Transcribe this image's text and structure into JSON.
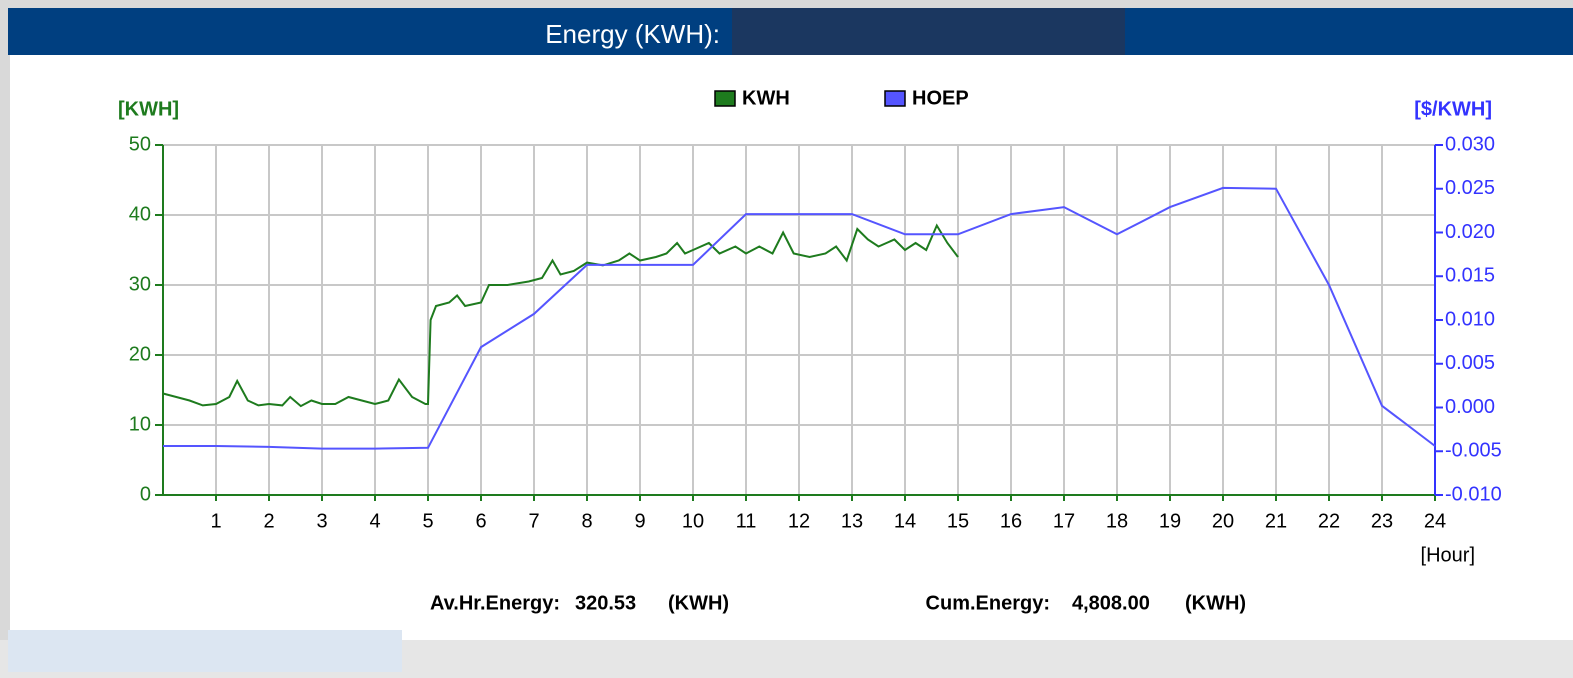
{
  "chart_data": {
    "type": "line",
    "title": "Energy (KWH):",
    "y_label": "[KWH]",
    "y2_label": "[$/KWH]",
    "x_label": "[Hour]",
    "xlim": [
      0,
      24
    ],
    "xticks": [
      1,
      2,
      3,
      4,
      5,
      6,
      7,
      8,
      9,
      10,
      11,
      12,
      13,
      14,
      15,
      16,
      17,
      18,
      19,
      20,
      21,
      22,
      23,
      24
    ],
    "ylim": [
      0,
      50
    ],
    "yticks": [
      0,
      10,
      20,
      30,
      40,
      50
    ],
    "y2lim": [
      -0.01,
      0.03
    ],
    "y2ticks": [
      {
        "value": -0.01,
        "label": "-0.010"
      },
      {
        "value": -0.005,
        "label": "-0.005"
      },
      {
        "value": 0,
        "label": "0.000"
      },
      {
        "value": 0.005,
        "label": "0.005"
      },
      {
        "value": 0.01,
        "label": "0.010"
      },
      {
        "value": 0.015,
        "label": "0.015"
      },
      {
        "value": 0.02,
        "label": "0.020"
      },
      {
        "value": 0.025,
        "label": "0.025"
      },
      {
        "value": 0.03,
        "label": "0.030"
      }
    ],
    "grid": true,
    "series": [
      {
        "name": "KWH",
        "color": "#1e7b1e",
        "x": [
          0,
          0.25,
          0.5,
          0.75,
          1,
          1.25,
          1.4,
          1.6,
          1.8,
          2,
          2.25,
          2.4,
          2.6,
          2.8,
          3,
          3.25,
          3.5,
          3.75,
          4,
          4.25,
          4.45,
          4.7,
          4.95,
          5.0,
          5.05,
          5.15,
          5.4,
          5.55,
          5.7,
          6,
          6.15,
          6.5,
          6.9,
          7.15,
          7.35,
          7.5,
          7.75,
          8,
          8.3,
          8.6,
          8.8,
          9.0,
          9.3,
          9.5,
          9.7,
          9.85,
          10,
          10.3,
          10.5,
          10.8,
          11.0,
          11.25,
          11.5,
          11.7,
          11.9,
          12.2,
          12.5,
          12.7,
          12.9,
          13.1,
          13.3,
          13.5,
          13.8,
          14.0,
          14.2,
          14.4,
          14.6,
          14.8,
          15.0
        ],
        "values": [
          14.5,
          14,
          13.5,
          12.8,
          13,
          14,
          16.3,
          13.5,
          12.8,
          13,
          12.8,
          14,
          12.7,
          13.5,
          13,
          13,
          14,
          13.5,
          13,
          13.5,
          16.5,
          14,
          13,
          13,
          25,
          27,
          27.5,
          28.5,
          27,
          27.5,
          30,
          30,
          30.5,
          31,
          33.5,
          31.5,
          32,
          33.2,
          32.8,
          33.5,
          34.5,
          33.5,
          34,
          34.5,
          36,
          34.5,
          35,
          36,
          34.5,
          35.5,
          34.5,
          35.5,
          34.5,
          37.5,
          34.5,
          34,
          34.5,
          35.5,
          33.5,
          38,
          36.5,
          35.5,
          36.5,
          35,
          36,
          35,
          38.5,
          36,
          34
        ]
      },
      {
        "name": "HOEP",
        "color": "#5555ff",
        "axis": "y2",
        "x": [
          0,
          1,
          2,
          3,
          4,
          5,
          6,
          7,
          8,
          9,
          10,
          11,
          12,
          13,
          14,
          15,
          16,
          17,
          18,
          19,
          20,
          21,
          22,
          23,
          24
        ],
        "values": [
          -0.0044,
          -0.0044,
          -0.0045,
          -0.0047,
          -0.0047,
          -0.0046,
          0.0069,
          0.0107,
          0.0163,
          0.0163,
          0.0163,
          0.0221,
          0.0221,
          0.0221,
          0.0198,
          0.0198,
          0.0221,
          0.0229,
          0.0198,
          0.0229,
          0.0251,
          0.025,
          0.014,
          0.0002,
          -0.0044
        ]
      }
    ],
    "stats": [
      {
        "label": "Av.Hr.Energy:",
        "value": "320.53",
        "unit": "(KWH)"
      },
      {
        "label": "Cum.Energy:",
        "value": "4,808.00",
        "unit": "(KWH)"
      }
    ]
  }
}
